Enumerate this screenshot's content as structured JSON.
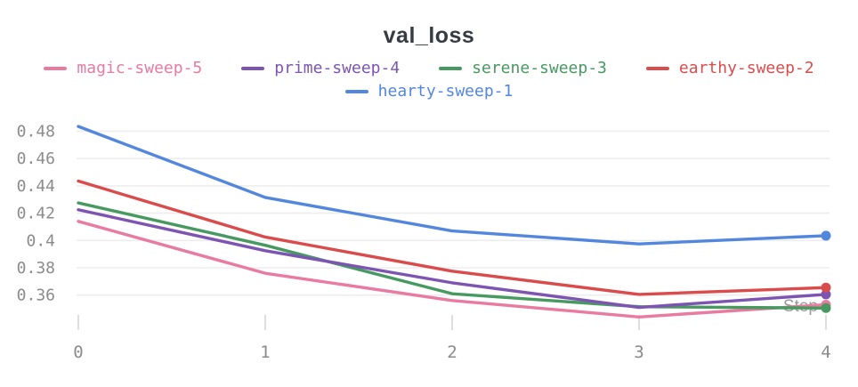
{
  "title": "val_loss",
  "axes": {
    "x_label": "Step",
    "x_ticks": [
      "0",
      "1",
      "2",
      "3",
      "4"
    ],
    "y_ticks": [
      "0.48",
      "0.46",
      "0.44",
      "0.42",
      "0.4",
      "0.38",
      "0.36"
    ]
  },
  "style_colors": {
    "title_text": "#363c44",
    "tick_text": "#8b8b8b",
    "axis_label_text": "#9a9a9a",
    "gridline": "#ededed",
    "tick_mark": "#dedede",
    "background": "#ffffff"
  },
  "legend": {
    "rows": [
      [
        {
          "label": "magic-sweep-5",
          "color": "#e87b9f"
        },
        {
          "label": "prime-sweep-4",
          "color": "#7d54b2"
        },
        {
          "label": "serene-sweep-3",
          "color": "#479a5f"
        },
        {
          "label": "earthy-sweep-2",
          "color": "#da4c4c"
        }
      ],
      [
        {
          "label": "hearty-sweep-1",
          "color": "#5387dd"
        }
      ]
    ]
  },
  "chart_data": {
    "type": "line",
    "title": "val_loss",
    "xlabel": "Step",
    "ylabel": "",
    "x": [
      0,
      1,
      2,
      3,
      4
    ],
    "series": [
      {
        "name": "magic-sweep-5",
        "color": "#e87b9f",
        "values": [
          0.414,
          0.376,
          0.356,
          0.344,
          0.353
        ]
      },
      {
        "name": "serene-sweep-3",
        "color": "#479a5f",
        "values": [
          0.4275,
          0.3965,
          0.361,
          0.3515,
          0.3505
        ]
      },
      {
        "name": "prime-sweep-4",
        "color": "#7d54b2",
        "values": [
          0.4225,
          0.3925,
          0.369,
          0.351,
          0.3605
        ]
      },
      {
        "name": "earthy-sweep-2",
        "color": "#da4c4c",
        "values": [
          0.4435,
          0.4025,
          0.3775,
          0.3605,
          0.3655
        ]
      },
      {
        "name": "hearty-sweep-1",
        "color": "#5387dd",
        "values": [
          0.4835,
          0.4315,
          0.407,
          0.3975,
          0.4035
        ]
      }
    ],
    "xlim": [
      0,
      4
    ],
    "ylim": [
      0.34,
      0.49
    ],
    "y_tick_step": 0.02,
    "grid": "horizontal",
    "legend_position": "top",
    "endpoint_markers": true
  }
}
